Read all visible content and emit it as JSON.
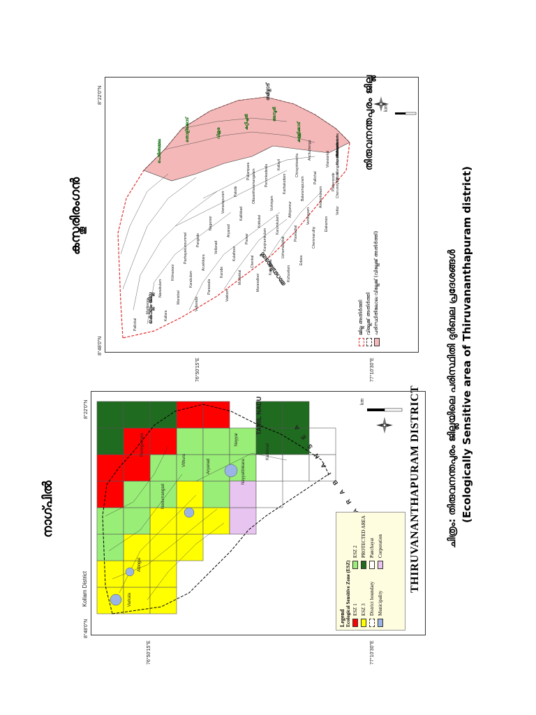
{
  "left_map": {
    "heading": "നാഗ്പിൽ",
    "title": "THIRUVANANTHAPURAM DISTRICT",
    "neighbor_label": "Kollam District",
    "state_label": "TAMIL NADU",
    "sea_label": "A R A B I A N   S E A",
    "ticks": {
      "top": "8°48'0\"N",
      "bottom": "8°22'0\"N",
      "left_lon": "76°50'15\"E",
      "right_lon": "77°10'30\"E"
    },
    "scale_label": "km",
    "scale_ticks": [
      "0",
      "5",
      "10"
    ],
    "legend": {
      "title": "Legend",
      "subtitle": "Ecological Sensitive Zone (ESZ)",
      "items": [
        {
          "label": "ESZ 1",
          "color": "#ff0000"
        },
        {
          "label": "ESZ 2",
          "color": "#99ee77"
        },
        {
          "label": "ESZ 3",
          "color": "#ffff00"
        },
        {
          "label": "PROTECTED AREA",
          "color": "#1f6b1f"
        },
        {
          "label": "District boundary",
          "color": "#ffffff"
        },
        {
          "label": "Panchayat",
          "color": "#ffffff"
        },
        {
          "label": "Municipality",
          "color": "#9ab4e6"
        },
        {
          "label": "Corporation",
          "color": "#e8c4f0"
        }
      ]
    },
    "place_labels": [
      "Peringamala",
      "Vithura",
      "Aryanad",
      "Neyyar",
      "Kallikkad",
      "Nedumangad",
      "Varkala",
      "Attingal",
      "Neyyattinkara"
    ]
  },
  "right_map": {
    "heading": "കസ്തൂരിരംഗൻ",
    "title": "തിരുവനന്തപുരം ജില്ല",
    "neighbor_label": "കൊല്ലം ജില്ല",
    "sea_label": "അറബിക്കടൽ",
    "state_label": "തമിഴ്നാട്",
    "ticks": {
      "top": "8°48'0\"N",
      "bottom": "8°22'0\"N",
      "left_lon": "76°50'15\"E",
      "right_lon": "77°10'30\"E"
    },
    "scale_label": "km",
    "scale_ticks": [
      "0",
      "5",
      "10"
    ],
    "legend": {
      "items": [
        {
          "label": "ജില്ല അതിർത്തി",
          "color": "#ffffff",
          "border": "#e03030"
        },
        {
          "label": "വില്ലേജ് അതിർത്തി",
          "color": "#ffffff",
          "border": "#333333"
        },
        {
          "label": "പരിസ്ഥിതിലോല വില്ലേജ് (വില്ലേജ് അതിർത്തി)",
          "color": "#f4b8b8",
          "border": "#333333"
        }
      ]
    },
    "eco_labels": [
      "പെരിങ്ങമ്മല",
      "തൊളിക്കോട്",
      "വിതുര",
      "കുറ്റിച്ചൽ",
      "അമ്പൂരി",
      "കള്ളിക്കാട്"
    ],
    "village_labels": [
      "Pallickal",
      "Madavoor",
      "Navaikulam",
      "Kilimanoor",
      "Pazhayakunnummel",
      "Pangode",
      "Nagaroor",
      "Vamanapuram",
      "Palode",
      "Pullampara",
      "Kallara",
      "Manickal",
      "Karakulam",
      "Aruvikkara",
      "Vellanad",
      "Aryanad",
      "Kallikkad",
      "Ottasekharamangalam",
      "Perumkadavila",
      "Kollayil",
      "Vellarada",
      "Parassala",
      "Karode",
      "Kulathoor",
      "Poovar",
      "Kottukal",
      "Vizhinjam",
      "Kazhakuttam",
      "Chirayinkeezhu",
      "Anchuthengu",
      "Vakkom",
      "Mudakkal",
      "Chenkal",
      "Kanjiramkulam",
      "Karumkulam",
      "Athiyannur",
      "Balaramapuram",
      "Pallichal",
      "Vilavoorkal",
      "Malayinkeezhu",
      "Maranalloor",
      "Kattakada",
      "Uzhamalakkal",
      "Poovachal",
      "Vembayam",
      "Andoorkonam",
      "Pothencode",
      "Mangalapuram",
      "Kadinamkulam",
      "Azhoor",
      "Kizhuvilam",
      "Edava",
      "Chemmaruthy",
      "Elakamon",
      "Vettur",
      "Cherunniyoor",
      "Ottoor",
      "Manamboor",
      "Karavaram",
      "Pulimath"
    ]
  },
  "caption": {
    "line1": "ചിത്രം: തിരുവനന്തപുരം ജില്ലയിലെ പരിസ്ഥിതി ദുർബല പ്രദേശങ്ങൾ",
    "line2": "(Ecologically Sensitive area of  Thiruvananthapuram district)"
  }
}
